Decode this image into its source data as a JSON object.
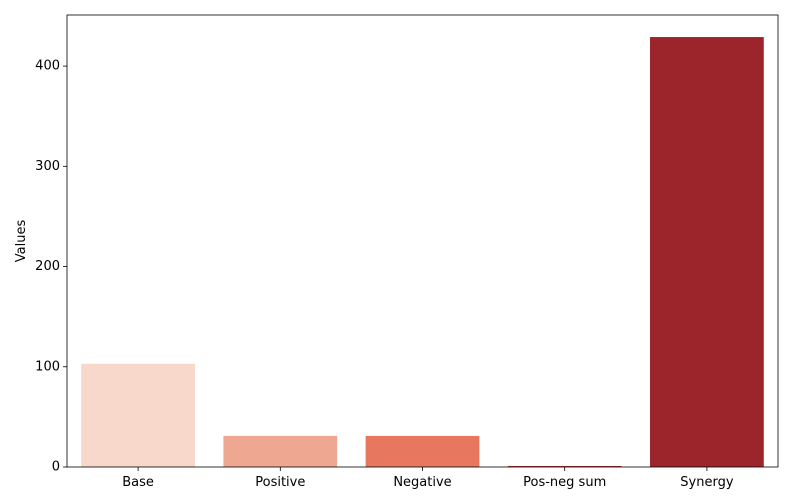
{
  "chart_data": {
    "type": "bar",
    "title": "",
    "xlabel": "",
    "ylabel": "Values",
    "categories": [
      "Base",
      "Positive",
      "Negative",
      "Pos-neg sum",
      "Synergy"
    ],
    "values": [
      103,
      31,
      31,
      1,
      429
    ],
    "colors": [
      "#f7d8cb",
      "#eea892",
      "#e8775f",
      "#be2e2e",
      "#9b252a"
    ],
    "ylim": [
      0,
      451
    ],
    "yticks": [
      0,
      100,
      200,
      300,
      400
    ],
    "grid": false,
    "legend": "none"
  }
}
